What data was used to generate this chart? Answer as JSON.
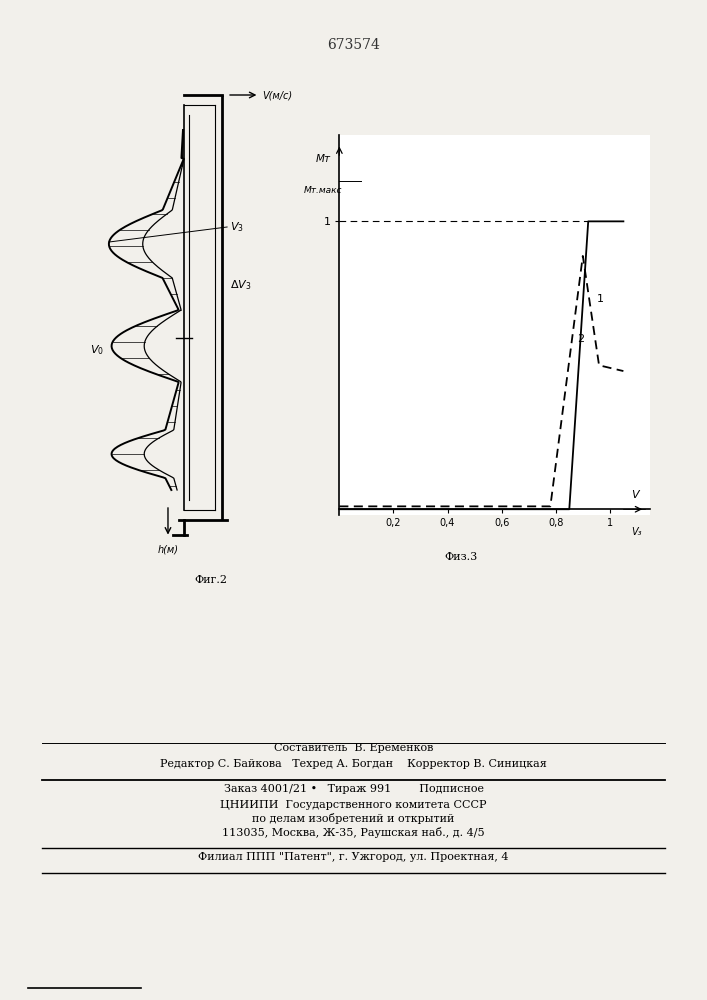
{
  "patent_number": "673574",
  "bg_color": "#f2f0eb",
  "fig_width": 7.07,
  "fig_height": 10.0,
  "footer": {
    "line1": "Составитель  В. Еременков",
    "line2": "Редактор С. Байкова   Техред А. Богдан    Корректор В. Синицкая",
    "line3": "Заказ 4001/21 •   Тираж 991        Подписное",
    "line4": "ЦНИИПИ  Государственного комитета СССР",
    "line5": "по делам изобретений и открытий",
    "line6": "113035, Москва, Ж-35, Раушская наб., д. 4/5",
    "line7": "Филиал ППП \"Патент\", г. Ужгород, ул. Проектная, 4"
  }
}
